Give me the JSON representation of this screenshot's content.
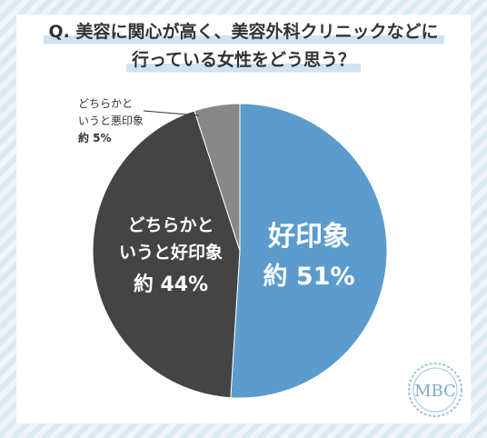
{
  "title": {
    "line1": "Q. 美容に関心が高く、美容外科クリニックなどに",
    "line2": "行っている女性をどう思う？"
  },
  "logo_text": "MBC",
  "colors": {
    "good": "#5b9ccd",
    "mid": "#444444",
    "bad": "#888888",
    "accent": "#cfe3f3"
  },
  "chart_data": {
    "type": "pie",
    "title": "Q. 美容に関心が高く、美容外科クリニックなどに行っている女性をどう思う？",
    "slices": [
      {
        "label_lines": [
          "好印象"
        ],
        "value": 51,
        "value_label": "約 51%"
      },
      {
        "label_lines": [
          "どちらかと",
          "いうと好印象"
        ],
        "value": 44,
        "value_label": "約 44%"
      },
      {
        "label_lines": [
          "どちらかと",
          "いうと悪印象"
        ],
        "value": 5,
        "value_label": "約 5%"
      }
    ]
  }
}
